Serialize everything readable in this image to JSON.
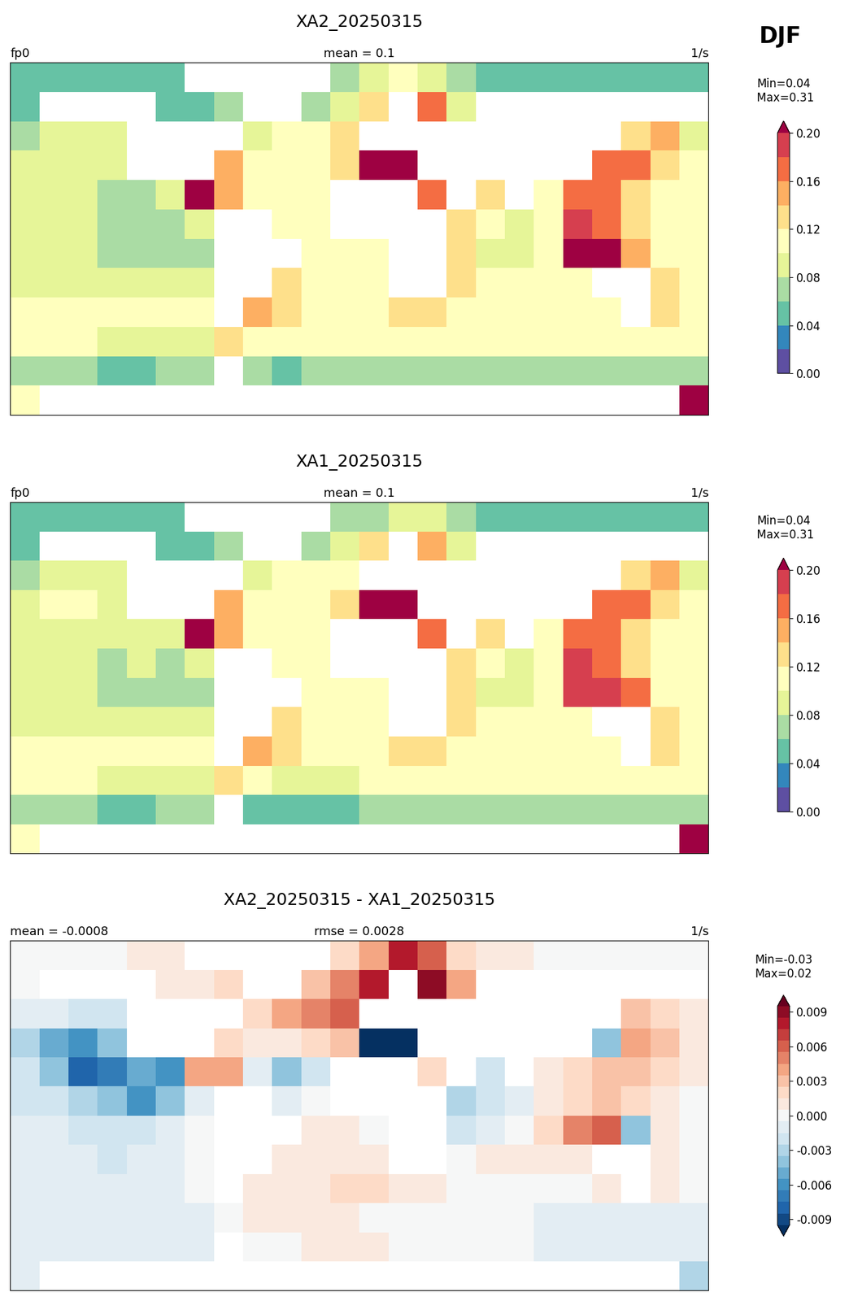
{
  "figure_label": "DJF",
  "chart_data": [
    {
      "type": "heatmap",
      "title": "XA2_20250315",
      "left_title": "fp0",
      "center_title": "mean = 0.1",
      "right_title": "1/s",
      "stats": "Min=0.04\n Max=0.31",
      "color": "Spectral_r",
      "tick_labels": false,
      "xlim": [
        -180,
        180
      ],
      "ylim": [
        -90,
        90
      ],
      "x_edges": [
        -180,
        -165,
        -150,
        -135,
        -120,
        -105,
        -90,
        -75,
        -60,
        -45,
        -30,
        -15,
        0,
        15,
        30,
        45,
        60,
        75,
        90,
        105,
        120,
        135,
        150,
        165,
        180
      ],
      "y_edges": [
        90,
        75,
        60,
        45,
        30,
        15,
        0,
        -15,
        -30,
        -45,
        -60,
        -75,
        -90
      ],
      "cells": [
        [
          0.05,
          0.05,
          0.05,
          0.05,
          0.05,
          0.05,
          null,
          null,
          null,
          null,
          null,
          0.06,
          0.08,
          0.1,
          0.09,
          0.06,
          0.05,
          0.05,
          0.05,
          0.05,
          0.05,
          0.05,
          0.05,
          0.05
        ],
        [
          0.05,
          null,
          null,
          null,
          null,
          0.05,
          0.05,
          0.06,
          null,
          null,
          0.06,
          0.08,
          0.13,
          null,
          0.17,
          0.08,
          null,
          null,
          null,
          null,
          null,
          null,
          null,
          null
        ],
        [
          0.07,
          0.08,
          0.08,
          0.09,
          null,
          null,
          null,
          null,
          0.08,
          0.1,
          0.11,
          0.12,
          null,
          null,
          null,
          null,
          null,
          null,
          null,
          null,
          null,
          0.12,
          0.14,
          0.09
        ],
        [
          0.09,
          0.09,
          0.09,
          0.08,
          null,
          null,
          null,
          0.15,
          0.11,
          0.11,
          0.11,
          0.12,
          0.22,
          0.22,
          null,
          null,
          null,
          null,
          null,
          null,
          0.17,
          0.16,
          0.12,
          0.1
        ],
        [
          0.09,
          0.08,
          0.08,
          0.07,
          0.07,
          0.08,
          0.21,
          0.15,
          0.11,
          0.1,
          0.1,
          null,
          null,
          null,
          0.17,
          null,
          0.12,
          null,
          0.11,
          0.16,
          0.17,
          0.13,
          0.11,
          0.1
        ],
        [
          0.09,
          0.09,
          0.08,
          0.07,
          0.07,
          0.07,
          0.09,
          null,
          null,
          0.11,
          0.1,
          null,
          null,
          null,
          null,
          0.13,
          0.1,
          0.09,
          0.1,
          0.18,
          0.16,
          0.12,
          0.11,
          0.1
        ],
        [
          0.08,
          0.08,
          0.08,
          0.07,
          0.07,
          0.07,
          0.07,
          null,
          null,
          null,
          0.1,
          0.1,
          0.11,
          null,
          null,
          0.12,
          0.09,
          0.09,
          0.1,
          0.2,
          0.2,
          0.15,
          0.11,
          0.1
        ],
        [
          0.09,
          0.09,
          0.09,
          0.08,
          0.08,
          0.08,
          0.08,
          null,
          null,
          0.13,
          0.11,
          0.1,
          0.11,
          null,
          null,
          0.12,
          0.1,
          0.1,
          0.1,
          0.11,
          null,
          null,
          0.12,
          0.11
        ],
        [
          0.1,
          0.1,
          0.1,
          0.1,
          0.1,
          0.1,
          0.1,
          null,
          0.15,
          0.12,
          0.11,
          0.11,
          0.11,
          0.12,
          0.12,
          0.11,
          0.11,
          0.11,
          0.11,
          0.11,
          0.11,
          null,
          0.12,
          0.11
        ],
        [
          0.1,
          0.1,
          0.1,
          0.09,
          0.09,
          0.09,
          0.09,
          0.13,
          0.11,
          0.1,
          0.1,
          0.1,
          0.1,
          0.1,
          0.1,
          0.1,
          0.1,
          0.1,
          0.1,
          0.1,
          0.1,
          0.1,
          0.1,
          0.1
        ],
        [
          0.06,
          0.06,
          0.06,
          0.05,
          0.05,
          0.06,
          0.07,
          null,
          0.06,
          0.05,
          0.06,
          0.06,
          0.07,
          0.07,
          0.06,
          0.06,
          0.06,
          0.07,
          0.07,
          0.06,
          0.06,
          0.06,
          0.06,
          0.06
        ],
        [
          0.1,
          null,
          null,
          null,
          null,
          null,
          null,
          null,
          null,
          null,
          null,
          null,
          null,
          null,
          null,
          null,
          null,
          null,
          null,
          null,
          null,
          null,
          null,
          0.22
        ]
      ],
      "colorbar": {
        "levels": [
          0.0,
          0.02,
          0.04,
          0.06,
          0.08,
          0.1,
          0.12,
          0.14,
          0.16,
          0.18,
          0.2
        ],
        "ticks": [
          {
            "value": 0.0,
            "label": "0.00"
          },
          0.04,
          0.08,
          0.12,
          0.16,
          {
            "value": 0.2,
            "label": "0.20"
          }
        ]
      }
    },
    {
      "type": "heatmap",
      "title": "XA1_20250315",
      "left_title": "fp0",
      "center_title": "mean = 0.1",
      "right_title": "1/s",
      "stats": "Min=0.04\n Max=0.31",
      "color": "Spectral_r",
      "tick_labels": false,
      "xlim": [
        -180,
        180
      ],
      "ylim": [
        -90,
        90
      ],
      "x_edges": [
        -180,
        -165,
        -150,
        -135,
        -120,
        -105,
        -90,
        -75,
        -60,
        -45,
        -30,
        -15,
        0,
        15,
        30,
        45,
        60,
        75,
        90,
        105,
        120,
        135,
        150,
        165,
        180
      ],
      "y_edges": [
        90,
        75,
        60,
        45,
        30,
        15,
        0,
        -15,
        -30,
        -45,
        -60,
        -75,
        -90
      ],
      "cells": [
        [
          0.05,
          0.05,
          0.05,
          0.05,
          0.05,
          0.05,
          null,
          null,
          null,
          null,
          null,
          0.06,
          0.07,
          0.09,
          0.08,
          0.06,
          0.05,
          0.05,
          0.05,
          0.05,
          0.05,
          0.05,
          0.05,
          0.05
        ],
        [
          0.05,
          null,
          null,
          null,
          null,
          0.05,
          0.05,
          0.06,
          null,
          null,
          0.06,
          0.08,
          0.12,
          null,
          0.15,
          0.08,
          null,
          null,
          null,
          null,
          null,
          null,
          null,
          null
        ],
        [
          0.07,
          0.08,
          0.08,
          0.09,
          null,
          null,
          null,
          null,
          0.08,
          0.1,
          0.1,
          0.11,
          null,
          null,
          null,
          null,
          null,
          null,
          null,
          null,
          null,
          0.12,
          0.14,
          0.09
        ],
        [
          0.09,
          0.1,
          0.1,
          0.09,
          null,
          null,
          null,
          0.15,
          0.11,
          0.11,
          0.11,
          0.12,
          0.23,
          0.23,
          null,
          null,
          null,
          null,
          null,
          null,
          0.17,
          0.16,
          0.12,
          0.1
        ],
        [
          0.09,
          0.08,
          0.09,
          0.08,
          0.08,
          0.08,
          0.21,
          0.15,
          0.11,
          0.1,
          0.1,
          null,
          null,
          null,
          0.17,
          null,
          0.12,
          null,
          0.11,
          0.16,
          0.17,
          0.13,
          0.11,
          0.1
        ],
        [
          0.09,
          0.09,
          0.08,
          0.07,
          0.08,
          0.07,
          0.09,
          null,
          null,
          0.11,
          0.1,
          null,
          null,
          null,
          null,
          0.13,
          0.1,
          0.09,
          0.1,
          0.18,
          0.16,
          0.12,
          0.11,
          0.1
        ],
        [
          0.08,
          0.08,
          0.08,
          0.07,
          0.07,
          0.07,
          0.07,
          null,
          null,
          null,
          0.1,
          0.1,
          0.11,
          null,
          null,
          0.12,
          0.09,
          0.09,
          0.1,
          0.19,
          0.19,
          0.17,
          0.11,
          0.1
        ],
        [
          0.09,
          0.09,
          0.09,
          0.08,
          0.08,
          0.08,
          0.08,
          null,
          null,
          0.13,
          0.11,
          0.1,
          0.11,
          null,
          null,
          0.12,
          0.1,
          0.1,
          0.1,
          0.11,
          null,
          null,
          0.12,
          0.11
        ],
        [
          0.1,
          0.1,
          0.1,
          0.1,
          0.1,
          0.1,
          0.1,
          null,
          0.15,
          0.12,
          0.11,
          0.11,
          0.11,
          0.12,
          0.12,
          0.11,
          0.11,
          0.11,
          0.11,
          0.11,
          0.11,
          null,
          0.12,
          0.11
        ],
        [
          0.1,
          0.1,
          0.1,
          0.09,
          0.09,
          0.09,
          0.09,
          0.13,
          0.1,
          0.09,
          0.09,
          0.09,
          0.1,
          0.1,
          0.1,
          0.1,
          0.1,
          0.1,
          0.1,
          0.1,
          0.1,
          0.1,
          0.1,
          0.1
        ],
        [
          0.06,
          0.06,
          0.06,
          0.05,
          0.05,
          0.06,
          0.07,
          null,
          0.05,
          0.05,
          0.05,
          0.05,
          0.06,
          0.07,
          0.06,
          0.06,
          0.06,
          0.07,
          0.07,
          0.06,
          0.06,
          0.06,
          0.06,
          0.06
        ],
        [
          0.1,
          null,
          null,
          null,
          null,
          null,
          null,
          null,
          null,
          null,
          null,
          null,
          null,
          null,
          null,
          null,
          null,
          null,
          null,
          null,
          null,
          null,
          null,
          0.22
        ]
      ],
      "colorbar": {
        "levels": [
          0.0,
          0.02,
          0.04,
          0.06,
          0.08,
          0.1,
          0.12,
          0.14,
          0.16,
          0.18,
          0.2
        ],
        "ticks": [
          {
            "value": 0.0,
            "label": "0.00"
          },
          0.04,
          0.08,
          0.12,
          0.16,
          {
            "value": 0.2,
            "label": "0.20"
          }
        ]
      }
    },
    {
      "type": "heatmap",
      "title": "XA2_20250315 - XA1_20250315",
      "left_title": "mean = -0.0008",
      "center_title": "rmse = 0.0028",
      "right_title": "1/s",
      "stats": "Min=-0.03\nMax=0.02",
      "color": "RdBu_r",
      "tick_labels": false,
      "xlim": [
        -180,
        180
      ],
      "ylim": [
        -90,
        90
      ],
      "x_edges": [
        -180,
        -165,
        -150,
        -135,
        -120,
        -105,
        -90,
        -75,
        -60,
        -45,
        -30,
        -15,
        0,
        15,
        30,
        45,
        60,
        75,
        90,
        105,
        120,
        135,
        150,
        165,
        180
      ],
      "y_edges": [
        90,
        75,
        60,
        45,
        30,
        15,
        0,
        -15,
        -30,
        -45,
        -60,
        -75,
        -90
      ],
      "cells": [
        [
          0.0,
          0.0,
          0.0,
          0.0,
          0.001,
          0.001,
          null,
          null,
          null,
          null,
          null,
          0.002,
          0.004,
          0.008,
          0.006,
          0.002,
          0.001,
          0.001,
          0.0,
          0.0,
          0.0,
          0.0,
          0.0,
          0.0
        ],
        [
          0.0,
          null,
          null,
          null,
          null,
          0.001,
          0.001,
          0.002,
          null,
          null,
          0.003,
          0.005,
          0.008,
          null,
          0.009,
          0.004,
          null,
          null,
          null,
          null,
          null,
          null,
          null,
          null
        ],
        [
          -0.001,
          -0.001,
          -0.002,
          -0.002,
          null,
          null,
          null,
          null,
          0.002,
          0.004,
          0.005,
          0.006,
          null,
          null,
          null,
          null,
          null,
          null,
          null,
          null,
          null,
          0.003,
          0.002,
          0.001
        ],
        [
          -0.003,
          -0.005,
          -0.006,
          -0.004,
          null,
          null,
          null,
          0.002,
          0.001,
          0.001,
          0.002,
          0.003,
          -0.01,
          -0.01,
          null,
          null,
          null,
          null,
          null,
          null,
          -0.004,
          0.004,
          0.003,
          0.001
        ],
        [
          -0.002,
          -0.004,
          -0.008,
          -0.007,
          -0.005,
          -0.006,
          0.004,
          0.004,
          -0.001,
          -0.004,
          -0.002,
          null,
          null,
          null,
          0.002,
          null,
          -0.002,
          null,
          0.001,
          0.002,
          0.003,
          0.003,
          0.002,
          0.001
        ],
        [
          -0.002,
          -0.002,
          -0.003,
          -0.004,
          -0.006,
          -0.004,
          -0.001,
          null,
          null,
          -0.001,
          0.0,
          null,
          null,
          null,
          null,
          -0.003,
          -0.002,
          -0.001,
          0.001,
          0.002,
          0.003,
          0.002,
          0.001,
          0.0
        ],
        [
          -0.001,
          -0.001,
          -0.002,
          -0.002,
          -0.002,
          -0.001,
          0.0,
          null,
          null,
          null,
          0.001,
          0.001,
          0.0,
          null,
          null,
          -0.002,
          -0.001,
          0.0,
          0.002,
          0.005,
          0.006,
          -0.004,
          0.001,
          0.0
        ],
        [
          -0.001,
          -0.001,
          -0.001,
          -0.002,
          -0.001,
          -0.001,
          0.0,
          null,
          null,
          0.001,
          0.001,
          0.001,
          0.001,
          null,
          null,
          0.0,
          0.001,
          0.001,
          0.001,
          0.001,
          null,
          null,
          0.001,
          0.0
        ],
        [
          -0.001,
          -0.001,
          -0.001,
          -0.001,
          -0.001,
          -0.001,
          0.0,
          null,
          0.001,
          0.001,
          0.001,
          0.002,
          0.002,
          0.001,
          0.001,
          0.0,
          0.0,
          0.0,
          0.0,
          0.0,
          0.001,
          null,
          0.001,
          0.0
        ],
        [
          -0.001,
          -0.001,
          -0.001,
          -0.001,
          -0.001,
          -0.001,
          -0.001,
          0.0,
          0.001,
          0.001,
          0.001,
          0.001,
          0.0,
          0.0,
          0.0,
          0.0,
          0.0,
          0.0,
          -0.001,
          -0.001,
          -0.001,
          -0.001,
          -0.001,
          -0.001
        ],
        [
          -0.001,
          -0.001,
          -0.001,
          -0.001,
          -0.001,
          -0.001,
          -0.001,
          null,
          0.0,
          0.0,
          0.001,
          0.001,
          0.001,
          0.0,
          0.0,
          0.0,
          0.0,
          0.0,
          -0.001,
          -0.001,
          -0.001,
          -0.001,
          -0.001,
          -0.001
        ],
        [
          -0.001,
          null,
          null,
          null,
          null,
          null,
          null,
          null,
          null,
          null,
          null,
          null,
          null,
          null,
          null,
          null,
          null,
          null,
          null,
          null,
          null,
          null,
          null,
          -0.003
        ]
      ],
      "colorbar": {
        "levels": [
          -0.0095,
          -0.0085,
          -0.0075,
          -0.0065,
          -0.0055,
          -0.0045,
          -0.0035,
          -0.0025,
          -0.0015,
          -0.0005,
          0.0005,
          0.0015,
          0.0025,
          0.0035,
          0.0045,
          0.0055,
          0.0065,
          0.0075,
          0.0085,
          0.0095
        ],
        "ticks": [
          -0.009,
          -0.006,
          -0.003,
          {
            "value": 0,
            "label": "0.000"
          },
          0.003,
          0.006,
          0.009
        ]
      }
    }
  ]
}
